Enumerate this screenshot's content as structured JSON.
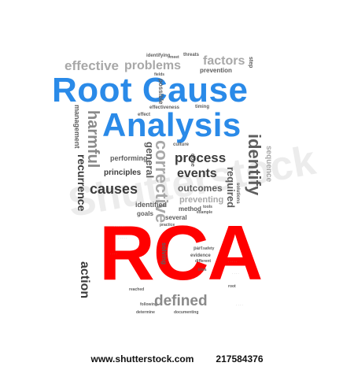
{
  "words": {
    "effective": "effective",
    "problems": "problems",
    "identifying": "identifying",
    "threats": "threats",
    "factors": "factors",
    "step": "step",
    "meet": "meet",
    "prevention": "prevention",
    "root_cause": "Root Cause",
    "analysis": "Analysis",
    "management": "management",
    "harmful": "harmful",
    "recurrence": "recurrence",
    "corrective": "corrective",
    "general": "general",
    "possible": "possible",
    "performing": "performing",
    "principles": "principles",
    "process": "process",
    "events": "events",
    "required": "required",
    "identify": "identify",
    "sequence": "sequence",
    "causes": "causes",
    "outcomes": "outcomes",
    "preventing": "preventing",
    "identified": "identified",
    "goals": "goals",
    "method": "method",
    "several": "several",
    "example": "example",
    "rca": "RCA",
    "action": "action",
    "solving": "solving",
    "defined": "defined",
    "practice": "practice",
    "part": "part",
    "evidence": "evidence",
    "different": "different",
    "tries": "tries",
    "effectiveness": "effectiveness",
    "timing": "timing",
    "effect": "effect",
    "culture": "culture",
    "done": "done",
    "solutions": "solutions",
    "safety": "safety",
    "tools": "tools",
    "root": "root",
    "determine": "determine",
    "documenting": "documenting",
    "following": "following",
    "reached": "reached",
    "fields": "fields"
  },
  "watermark": "Shutterstock",
  "footer": {
    "site": "www.shutterstock.com",
    "id": "217584376"
  },
  "colors": {
    "title_blue": "#2a8ae8",
    "rca_red": "#ff0000",
    "word_gray": "#8a8a8a"
  }
}
